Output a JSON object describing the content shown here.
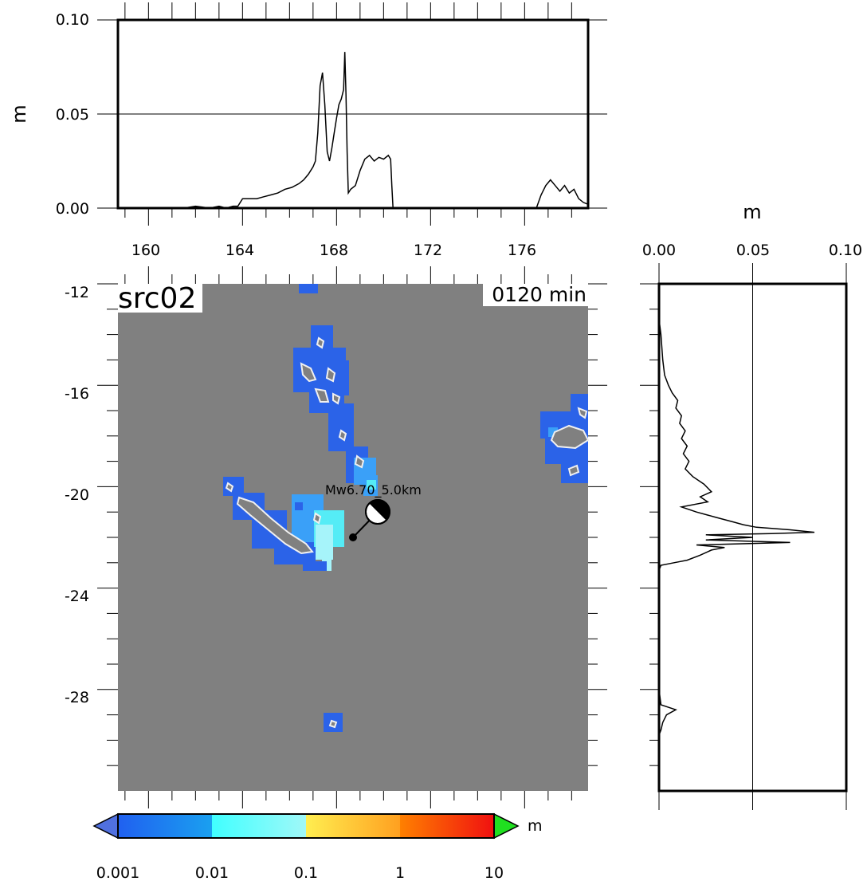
{
  "chart_data": [
    {
      "type": "line",
      "title": "",
      "xlabel": "",
      "ylabel": "m",
      "xlim": [
        158.7,
        178.7
      ],
      "ylim": [
        0,
        0.1
      ],
      "xticks": [
        "160",
        "164",
        "168",
        "172",
        "176"
      ],
      "yticks": [
        "0.00",
        "0.05",
        "0.10"
      ],
      "grid_y": [
        0.05
      ],
      "x": [
        158.7,
        160,
        161.5,
        162,
        162.6,
        163,
        163.3,
        163.6,
        163.8,
        164,
        164.3,
        164.6,
        164.9,
        165.2,
        165.5,
        165.8,
        166.1,
        166.4,
        166.6,
        166.8,
        167,
        167.1,
        167.2,
        167.3,
        167.4,
        167.5,
        167.6,
        167.7,
        167.8,
        167.9,
        168,
        168.1,
        168.2,
        168.3,
        168.35,
        168.4,
        168.45,
        168.5,
        168.6,
        168.8,
        169,
        169.2,
        169.4,
        169.6,
        169.8,
        170,
        170.2,
        170.3,
        170.35,
        170.4,
        171,
        172,
        173,
        174,
        175,
        176,
        176.5,
        176.7,
        176.9,
        177.1,
        177.3,
        177.5,
        177.7,
        177.9,
        178.1,
        178.3,
        178.5,
        178.7
      ],
      "values": [
        0,
        0,
        0,
        0.001,
        0,
        0.001,
        0,
        0.001,
        0.001,
        0.005,
        0.005,
        0.005,
        0.006,
        0.007,
        0.008,
        0.01,
        0.011,
        0.013,
        0.015,
        0.018,
        0.022,
        0.025,
        0.04,
        0.065,
        0.072,
        0.055,
        0.03,
        0.025,
        0.032,
        0.04,
        0.048,
        0.055,
        0.058,
        0.063,
        0.083,
        0.06,
        0.03,
        0.008,
        0.01,
        0.012,
        0.02,
        0.026,
        0.028,
        0.025,
        0.027,
        0.026,
        0.028,
        0.026,
        0.012,
        0,
        0,
        0,
        0,
        0,
        0,
        0,
        0,
        0.007,
        0.012,
        0.015,
        0.012,
        0.009,
        0.012,
        0.008,
        0.01,
        0.005,
        0.003,
        0.002
      ]
    },
    {
      "type": "heatmap",
      "title": "src02",
      "annotation": "0120 min",
      "xlim": [
        158.7,
        178.7
      ],
      "ylim": [
        -32,
        -12
      ],
      "xticks": [
        "160",
        "164",
        "168",
        "172",
        "176"
      ],
      "yticks": [
        "-12",
        "-16",
        "-20",
        "-24",
        "-28"
      ],
      "background_color": "#808080",
      "epicenter": {
        "lon": 170.6,
        "lat": -20.7,
        "plot_lon": 168.8,
        "plot_lat": -21.7,
        "label": "Mw6.70_5.0km"
      },
      "colorbar": {
        "unit": "m",
        "scale": "log",
        "tick_labels": [
          "0.001",
          "0.01",
          "0.1",
          "1",
          "10"
        ],
        "colors": [
          "#2860f0",
          "#40ffff",
          "#ffc030",
          "#ff4000"
        ],
        "under_color": "#5070e0",
        "over_color": "#20e020"
      }
    },
    {
      "type": "line",
      "title": "",
      "xlabel": "m",
      "ylabel": "",
      "xlim": [
        0,
        0.1
      ],
      "ylim": [
        -32,
        -12
      ],
      "xticks": [
        "0.00",
        "0.05",
        "0.10"
      ],
      "grid_x": [
        0.05
      ],
      "y": [
        -13.4,
        -14,
        -15,
        -15.6,
        -16,
        -16.3,
        -16.6,
        -16.9,
        -17.2,
        -17.5,
        -17.8,
        -18.1,
        -18.4,
        -18.7,
        -19,
        -19.3,
        -19.6,
        -19.9,
        -20.2,
        -20.4,
        -20.6,
        -20.8,
        -21,
        -21.2,
        -21.4,
        -21.5,
        -21.6,
        -21.7,
        -21.8,
        -21.85,
        -21.9,
        -22,
        -22.1,
        -22.2,
        -22.3,
        -22.4,
        -22.5,
        -22.7,
        -22.9,
        -23,
        -23.1,
        -23.3,
        -24,
        -28,
        -28.6,
        -28.8,
        -29,
        -29.3,
        -29.6,
        -29.8,
        -32
      ],
      "values": [
        0,
        0.001,
        0.002,
        0.003,
        0.005,
        0.007,
        0.01,
        0.009,
        0.012,
        0.011,
        0.014,
        0.012,
        0.015,
        0.013,
        0.016,
        0.014,
        0.018,
        0.024,
        0.028,
        0.022,
        0.026,
        0.012,
        0.02,
        0.03,
        0.04,
        0.045,
        0.052,
        0.07,
        0.083,
        0.06,
        0.025,
        0.05,
        0.025,
        0.07,
        0.02,
        0.035,
        0.028,
        0.022,
        0.015,
        0.008,
        0.001,
        0,
        0,
        0,
        0.001,
        0.009,
        0.004,
        0.002,
        0.001,
        0,
        0
      ]
    }
  ]
}
